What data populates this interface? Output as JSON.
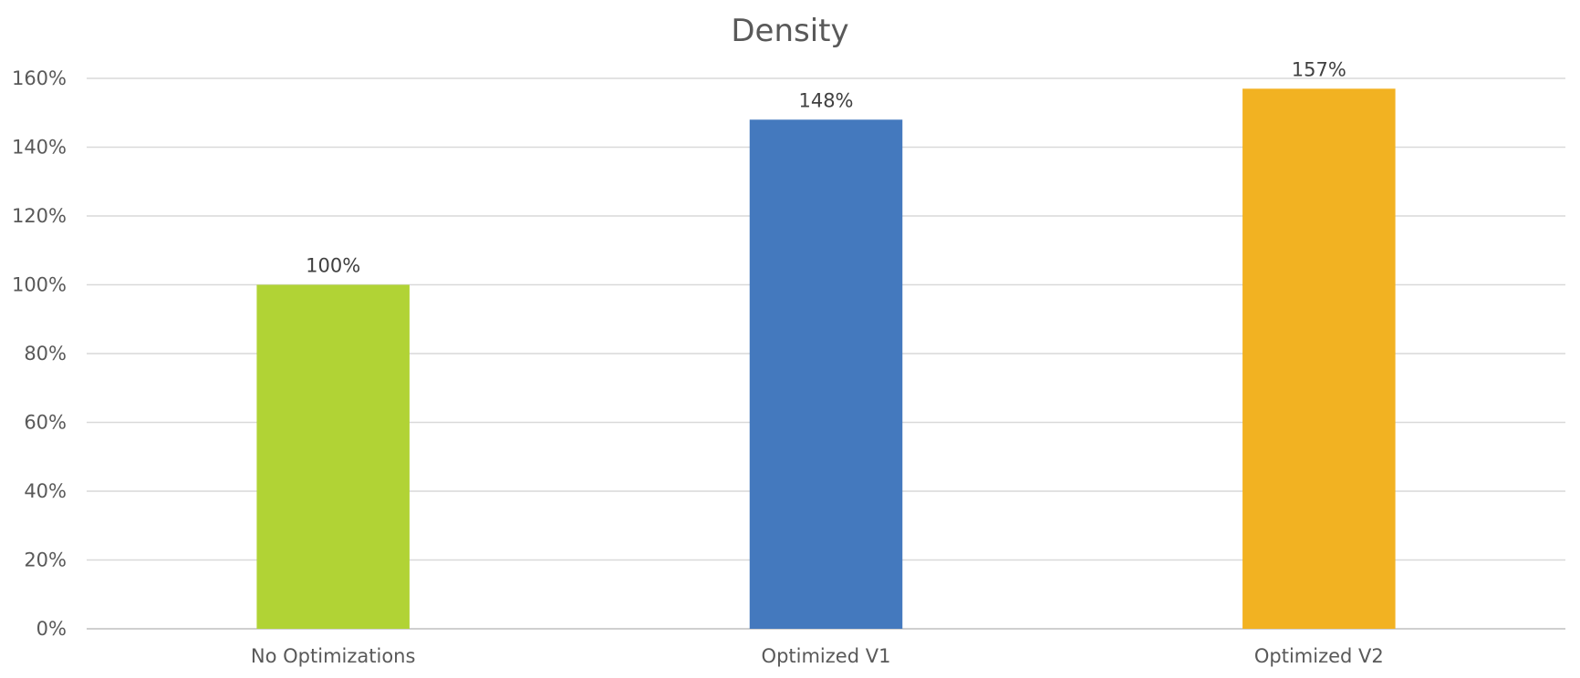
{
  "chart_data": {
    "type": "bar",
    "title": "Density",
    "xlabel": "",
    "ylabel": "",
    "categories": [
      "No Optimizations",
      "Optimized V1",
      "Optimized V2"
    ],
    "values": [
      100,
      148,
      157
    ],
    "value_labels": [
      "100%",
      "148%",
      "157%"
    ],
    "colors": [
      "#b1d335",
      "#4479be",
      "#f2b222"
    ],
    "ylim": [
      0,
      160
    ],
    "yticks": [
      0,
      20,
      40,
      60,
      80,
      100,
      120,
      140,
      160
    ],
    "ytick_labels": [
      "0%",
      "20%",
      "40%",
      "60%",
      "80%",
      "100%",
      "120%",
      "140%",
      "160%"
    ],
    "grid": true,
    "legend": "none",
    "gridline_color": "#d9d9d9",
    "axis_color": "#bfbfbf"
  }
}
